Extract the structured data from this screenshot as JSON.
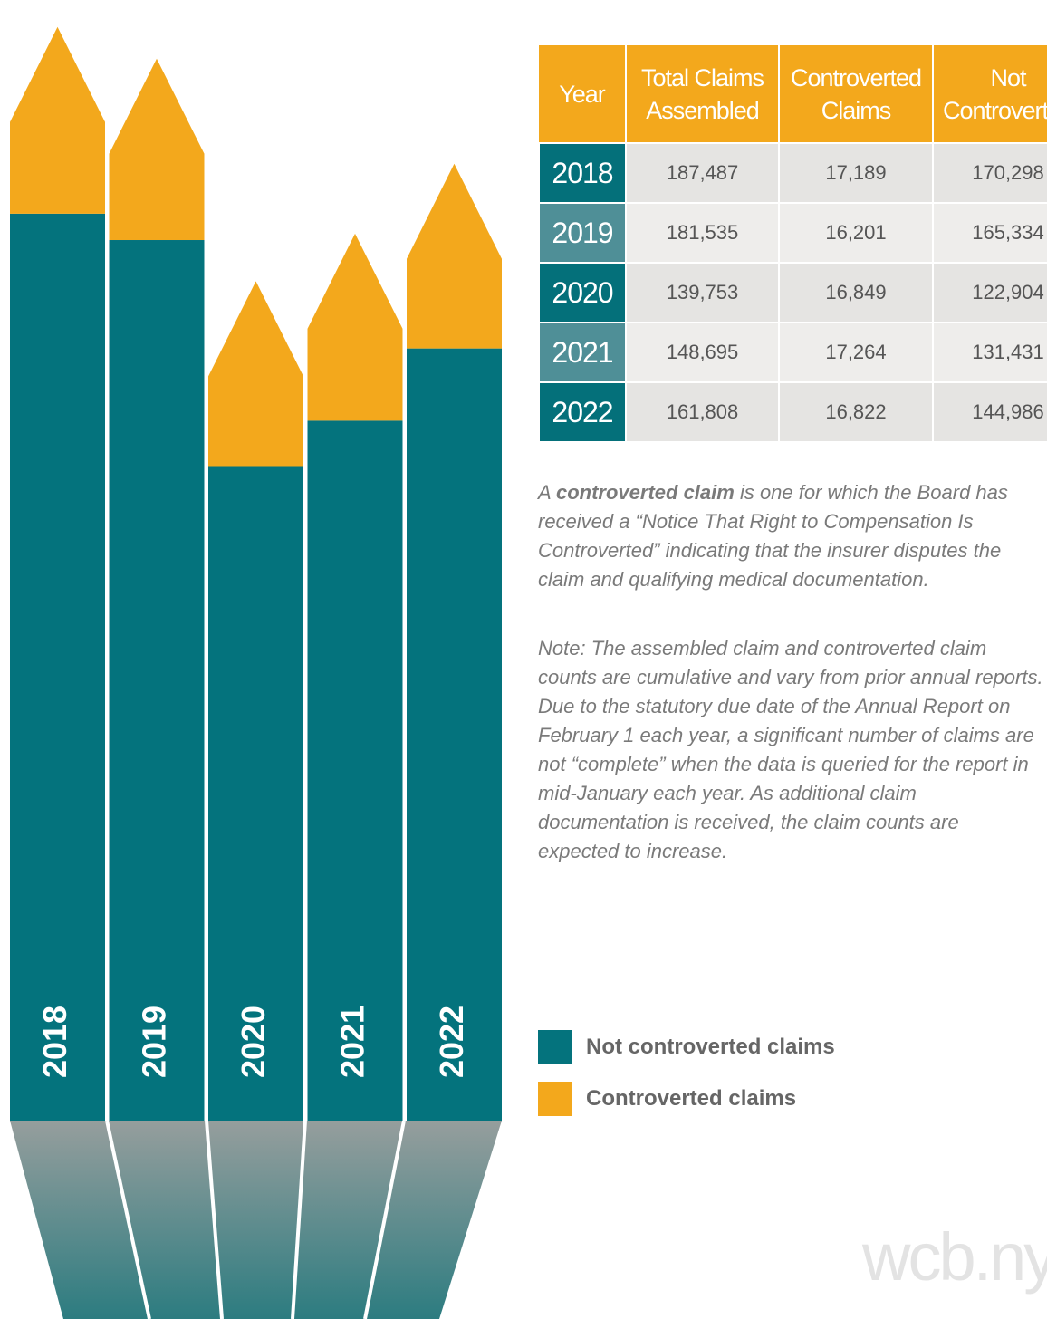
{
  "chart_data": {
    "type": "bar",
    "stacked": true,
    "categories": [
      "2018",
      "2019",
      "2020",
      "2021",
      "2022"
    ],
    "series": [
      {
        "name": "Not controverted claims",
        "color": "#04737d",
        "values": [
          170298,
          165334,
          122904,
          131431,
          144986
        ],
        "value_labels": [
          "170,298",
          "165,334",
          "122,904",
          "131,431",
          "144,986"
        ]
      },
      {
        "name": "Controverted claims",
        "color": "#f3a81c",
        "values": [
          17189,
          16201,
          16849,
          17264,
          16822
        ],
        "value_labels": [
          "17,189",
          "16,201",
          "16,849",
          "17,264",
          "16,822"
        ]
      }
    ],
    "ylim": [
      0,
      190000
    ]
  },
  "table": {
    "headers": [
      "Year",
      "Total Claims Assembled",
      "Controverted Claims",
      "Not Controverted"
    ],
    "total": [
      "187,487",
      "181,535",
      "139,753",
      "148,695",
      "161,808"
    ]
  },
  "notes": {
    "definition": [
      "A ",
      "controverted claim",
      " is one for which the Board has received a “Notice That Right to Compensation Is Controverted” indicating that the insurer disputes the claim and qualifying medical documentation."
    ],
    "note": "Note: The assembled claim and controverted claim counts are cumulative and vary from prior annual reports. Due to the statutory due date of the Annual Report on February 1 each year, a significant number of claims are not “complete” when the data is queried for the report in mid-January each year. As additional claim documentation is received, the claim counts are expected to increase."
  },
  "watermark": "wcb.ny."
}
